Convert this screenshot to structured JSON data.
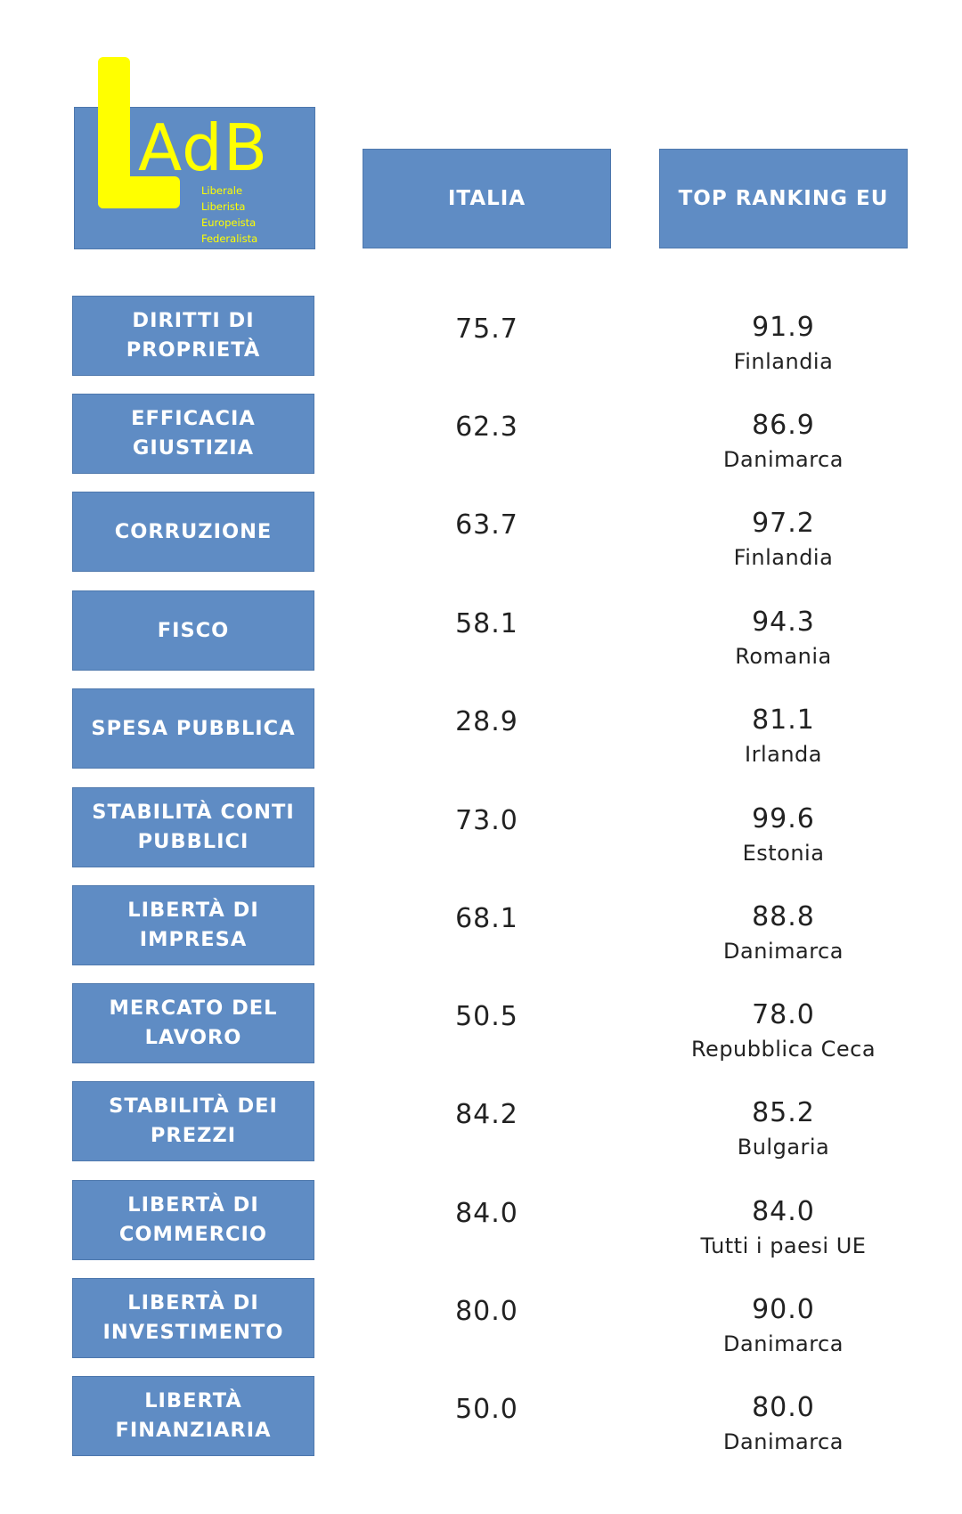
{
  "logo": {
    "letters": "AdB",
    "l_letter": "L",
    "words": [
      "Liberale",
      "Liberista",
      "Europeista",
      "Federalista"
    ],
    "text_color": "#ffff00"
  },
  "headers": {
    "italia": "ITALIA",
    "top": "TOP RANKING EU"
  },
  "colors": {
    "box": "#5f8cc4",
    "box_text": "#ffffff",
    "value_text": "#222222"
  },
  "rows": [
    {
      "category": "DIRITTI DI PROPRIETÀ",
      "italia": "75.7",
      "top_value": "91.9",
      "top_country": "Finlandia"
    },
    {
      "category": "EFFICACIA GIUSTIZIA",
      "italia": "62.3",
      "top_value": "86.9",
      "top_country": "Danimarca"
    },
    {
      "category": "CORRUZIONE",
      "italia": "63.7",
      "top_value": "97.2",
      "top_country": "Finlandia"
    },
    {
      "category": "FISCO",
      "italia": "58.1",
      "top_value": "94.3",
      "top_country": "Romania"
    },
    {
      "category": "SPESA PUBBLICA",
      "italia": "28.9",
      "top_value": "81.1",
      "top_country": "Irlanda"
    },
    {
      "category": "STABILITÀ CONTI PUBBLICI",
      "italia": "73.0",
      "top_value": "99.6",
      "top_country": "Estonia"
    },
    {
      "category": "LIBERTÀ DI IMPRESA",
      "italia": "68.1",
      "top_value": "88.8",
      "top_country": "Danimarca"
    },
    {
      "category": "MERCATO DEL LAVORO",
      "italia": "50.5",
      "top_value": "78.0",
      "top_country": "Repubblica Ceca"
    },
    {
      "category": "STABILITÀ DEI PREZZI",
      "italia": "84.2",
      "top_value": "85.2",
      "top_country": "Bulgaria"
    },
    {
      "category": "LIBERTÀ DI COMMERCIO",
      "italia": "84.0",
      "top_value": "84.0",
      "top_country": "Tutti i paesi UE"
    },
    {
      "category": "LIBERTÀ DI INVESTIMENTO",
      "italia": "80.0",
      "top_value": "90.0",
      "top_country": "Danimarca"
    },
    {
      "category": "LIBERTÀ FINANZIARIA",
      "italia": "50.0",
      "top_value": "80.0",
      "top_country": "Danimarca"
    }
  ]
}
